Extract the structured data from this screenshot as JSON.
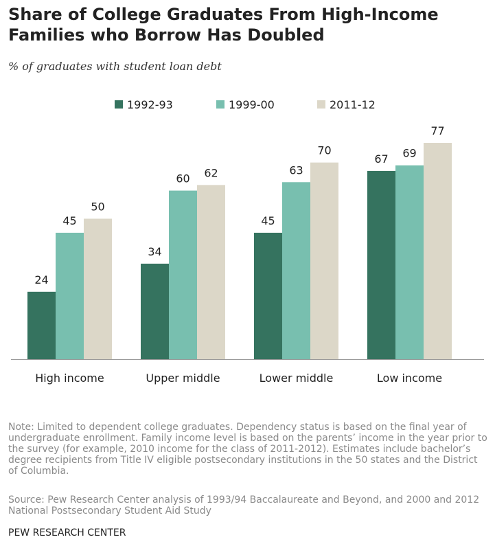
{
  "chart_data": {
    "type": "bar",
    "title": "Share of College Graduates From High-Income Families who Borrow Has Doubled",
    "subtitle": "% of graduates with student loan debt",
    "categories": [
      "High income",
      "Upper middle",
      "Lower middle",
      "Low income"
    ],
    "series": [
      {
        "name": "1992-93",
        "values": [
          24,
          34,
          45,
          67
        ],
        "color": "#35735f"
      },
      {
        "name": "1999-00",
        "values": [
          45,
          60,
          63,
          69
        ],
        "color": "#78bfaf"
      },
      {
        "name": "2011-12",
        "values": [
          50,
          62,
          70,
          77
        ],
        "color": "#dcd7c8"
      }
    ],
    "ylim": [
      0,
      77
    ],
    "grid": false,
    "legend": "top-center"
  },
  "notes": "Note: Limited to dependent college graduates. Dependency status is based on the final year of undergraduate enrollment. Family income level is based on the parents’ income in the year prior to the survey (for example, 2010 income for the class of 2011-2012). Estimates include bachelor’s degree recipients from Title IV eligible postsecondary institutions in the 50 states and the District of Columbia.",
  "source": "Source: Pew Research Center analysis of 1993/94 Baccalaureate and Beyond, and 2000 and 2012 National Postsecondary Student Aid Study",
  "organization": "PEW RESEARCH CENTER"
}
